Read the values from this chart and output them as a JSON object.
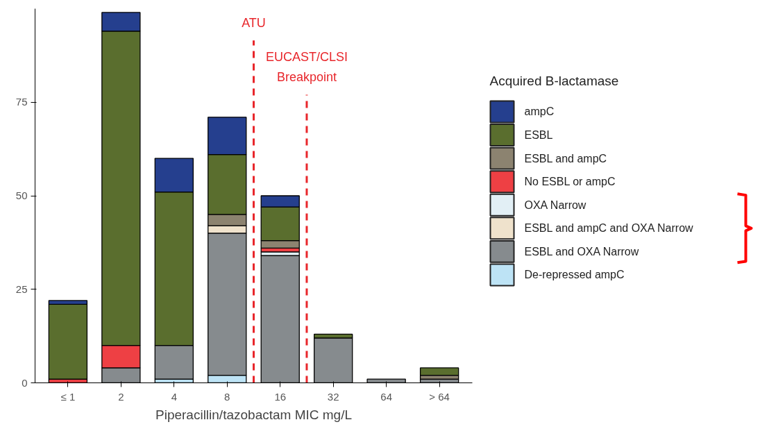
{
  "chart_data": {
    "type": "bar",
    "stacked": true,
    "xlabel": "Piperacillin/tazobactam MIC mg/L",
    "legend_title": "Acquired B-lactamase",
    "legend": "right",
    "categories": [
      "≤ 1",
      "2",
      "4",
      "8",
      "16",
      "32",
      "64",
      "> 64"
    ],
    "ylim": [
      0,
      100
    ],
    "yticks": [
      0,
      25,
      50,
      75
    ],
    "grid": false,
    "series": [
      {
        "name": "De-repressed ampC",
        "color": "#bde3f5",
        "values": [
          0,
          0,
          1,
          2,
          0,
          0,
          0,
          0
        ]
      },
      {
        "name": "ESBL and OXA Narrow",
        "color": "#868b8e",
        "values": [
          0,
          4,
          9,
          38,
          34,
          12,
          1,
          1
        ]
      },
      {
        "name": "ESBL and ampC and OXA Narrow",
        "color": "#efe2cc",
        "values": [
          0,
          0,
          0,
          2,
          0,
          0,
          0,
          0
        ]
      },
      {
        "name": "OXA Narrow",
        "color": "#e2eff5",
        "values": [
          0,
          0,
          0,
          0,
          1,
          0,
          0,
          0
        ]
      },
      {
        "name": "No ESBL or ampC",
        "color": "#ee4044",
        "values": [
          1,
          6,
          0,
          0,
          1,
          0,
          0,
          0
        ]
      },
      {
        "name": "ESBL and ampC",
        "color": "#8c8370",
        "values": [
          0,
          0,
          0,
          3,
          2,
          0,
          0,
          1
        ]
      },
      {
        "name": "ESBL",
        "color": "#5a6e2e",
        "values": [
          20,
          84,
          41,
          16,
          9,
          1,
          0,
          2
        ]
      },
      {
        "name": "ampC",
        "color": "#253f8e",
        "values": [
          1,
          5,
          9,
          10,
          3,
          0,
          0,
          0
        ]
      }
    ],
    "annotations": [
      "ATU",
      "EUCAST/CLSI\nBreakpoint"
    ]
  }
}
